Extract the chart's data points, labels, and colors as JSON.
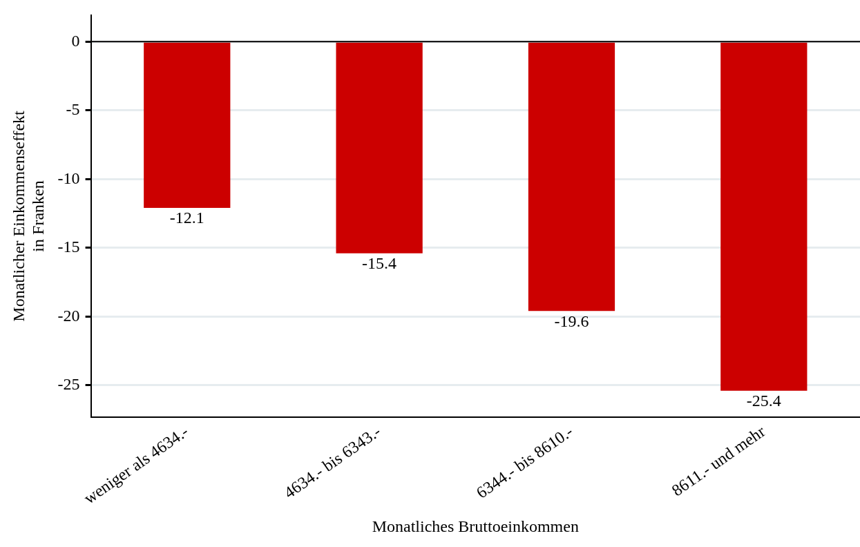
{
  "chart_data": {
    "type": "bar",
    "xlabel": "Monatliches Bruttoeinkommen",
    "ylabel": "Monatlicher Einkommenseffekt\nin Franken",
    "categories": [
      "weniger als 4634.-",
      "4634.- bis 6343.-",
      "6344.- bis 8610.-",
      "8611.- und mehr"
    ],
    "values": [
      -12.1,
      -15.4,
      -19.6,
      -25.4
    ],
    "color": "#cc0000",
    "ylim": [
      -27.3,
      1.9
    ],
    "yticks": [
      0,
      -5,
      -10,
      -15,
      -20,
      -25
    ],
    "grid": "y",
    "data_labels": true,
    "ref_lines": [
      {
        "axis": "y",
        "value": 0,
        "color": "#000000"
      }
    ]
  }
}
